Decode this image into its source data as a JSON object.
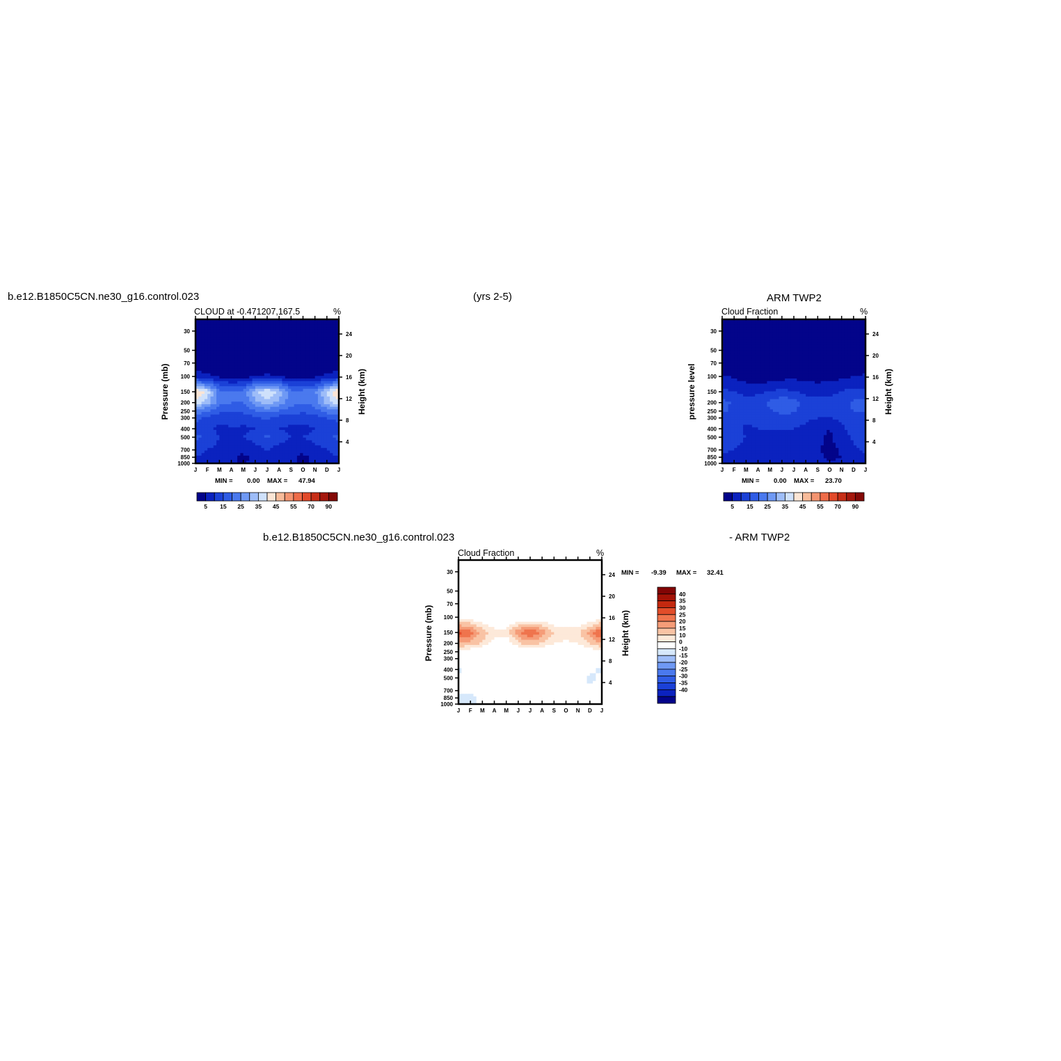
{
  "header": {
    "case_title": "b.e12.B1850C5CN.ne30_g16.control.023",
    "period": "(yrs 2-5)",
    "obs_title": "ARM TWP2",
    "diff_case": "b.e12.B1850C5CN.ne30_g16.control.023",
    "diff_obs": "- ARM TWP2"
  },
  "colors": {
    "seq_scale": [
      "#03048a",
      "#0b22bf",
      "#1b41d7",
      "#2f5ce5",
      "#4a79ee",
      "#6f99f4",
      "#9ebdf8",
      "#cfe1fb",
      "#fbe5d5",
      "#f7bb9a",
      "#f39470",
      "#ee6c49",
      "#e24a2a",
      "#c72e17",
      "#a5180d",
      "#840a07"
    ],
    "diff_scale": [
      "#03048a",
      "#0b22bf",
      "#1b41d7",
      "#2f5ce5",
      "#4a79ee",
      "#6f99f4",
      "#9ebdf8",
      "#d6e8fb",
      "#ffffff",
      "#fde9d9",
      "#f9c3a4",
      "#f59c78",
      "#ef744d",
      "#e24d2a",
      "#c4290f",
      "#a31206",
      "#820505"
    ]
  },
  "chart_data": [
    {
      "type": "heatmap",
      "panel_title": "CLOUD at -0.471207,167.5",
      "units": "%",
      "ylabel": "Pressure (mb)",
      "y2label": "Height (km)",
      "xticks": [
        "J",
        "F",
        "M",
        "A",
        "M",
        "J",
        "J",
        "A",
        "S",
        "O",
        "N",
        "D",
        "J"
      ],
      "yticks": [
        "30",
        "50",
        "70",
        "100",
        "150",
        "200",
        "250",
        "300",
        "400",
        "500",
        "700",
        "850",
        "1000"
      ],
      "y2ticks": [
        "24",
        "20",
        "16",
        "12",
        "8",
        "4"
      ],
      "stats_min_label": "MIN =",
      "stats_min": "0.00",
      "stats_max_label": "MAX =",
      "stats_max": "47.94",
      "min": 0.0,
      "max": 47.94,
      "levels": [
        5,
        10,
        15,
        20,
        25,
        30,
        35,
        40,
        45,
        50,
        55,
        60,
        70,
        80,
        90
      ],
      "colorbar_labels": [
        "5",
        "15",
        "25",
        "35",
        "45",
        "55",
        "70",
        "90"
      ],
      "months": [
        0,
        1,
        2,
        3,
        4,
        5,
        6,
        7,
        8,
        9,
        10,
        11,
        12
      ],
      "pressure": [
        30,
        50,
        70,
        100,
        150,
        200,
        250,
        300,
        400,
        500,
        700,
        850,
        1000
      ],
      "values": [
        [
          0,
          0,
          0,
          0,
          0,
          0,
          0,
          0,
          0,
          0,
          0,
          0,
          0
        ],
        [
          0,
          0,
          0,
          0,
          0,
          0,
          0,
          0,
          0,
          0,
          0,
          0,
          0
        ],
        [
          1,
          1,
          1,
          1,
          1,
          1,
          1,
          1,
          1,
          1,
          1,
          1,
          1
        ],
        [
          8,
          6,
          4,
          3,
          3,
          5,
          6,
          5,
          3,
          3,
          4,
          6,
          8
        ],
        [
          46,
          38,
          22,
          20,
          22,
          34,
          40,
          34,
          22,
          22,
          24,
          36,
          46
        ],
        [
          38,
          32,
          22,
          20,
          20,
          28,
          34,
          28,
          22,
          20,
          22,
          32,
          38
        ],
        [
          24,
          20,
          16,
          16,
          16,
          20,
          22,
          20,
          17,
          16,
          18,
          22,
          24
        ],
        [
          16,
          14,
          12,
          12,
          12,
          14,
          16,
          13,
          12,
          12,
          13,
          15,
          16
        ],
        [
          14,
          12,
          8,
          10,
          9,
          10,
          12,
          10,
          9,
          8,
          10,
          12,
          14
        ],
        [
          16,
          14,
          10,
          10,
          10,
          12,
          16,
          12,
          10,
          10,
          12,
          14,
          16
        ],
        [
          12,
          10,
          8,
          7,
          6,
          8,
          10,
          8,
          7,
          6,
          8,
          10,
          12
        ],
        [
          10,
          9,
          7,
          6,
          4,
          6,
          8,
          7,
          6,
          4,
          6,
          8,
          10
        ],
        [
          7,
          7,
          6,
          5,
          5,
          6,
          6,
          6,
          5,
          5,
          5,
          6,
          7
        ]
      ]
    },
    {
      "type": "heatmap",
      "panel_title": "Cloud Fraction",
      "units": "%",
      "ylabel": "pressure level",
      "y2label": "Height (km)",
      "xticks": [
        "J",
        "F",
        "M",
        "A",
        "M",
        "J",
        "J",
        "A",
        "S",
        "O",
        "N",
        "D",
        "J"
      ],
      "yticks": [
        "30",
        "50",
        "70",
        "100",
        "150",
        "200",
        "250",
        "300",
        "400",
        "500",
        "700",
        "850",
        "1000"
      ],
      "y2ticks": [
        "24",
        "20",
        "16",
        "12",
        "8",
        "4"
      ],
      "stats_min_label": "MIN =",
      "stats_min": "0.00",
      "stats_max_label": "MAX =",
      "stats_max": "23.70",
      "min": 0.0,
      "max": 23.7,
      "levels": [
        5,
        10,
        15,
        20,
        25,
        30,
        35,
        40,
        45,
        50,
        55,
        60,
        70,
        80,
        90
      ],
      "colorbar_labels": [
        "5",
        "15",
        "25",
        "35",
        "45",
        "55",
        "70",
        "90"
      ],
      "months": [
        0,
        1,
        2,
        3,
        4,
        5,
        6,
        7,
        8,
        9,
        10,
        11,
        12
      ],
      "pressure": [
        30,
        50,
        70,
        100,
        150,
        200,
        250,
        300,
        400,
        500,
        700,
        850,
        1000
      ],
      "values": [
        [
          0,
          0,
          0,
          0,
          0,
          0,
          0,
          0,
          0,
          0,
          0,
          0,
          0
        ],
        [
          0,
          0,
          0,
          0,
          0,
          0,
          0,
          0,
          0,
          0,
          0,
          0,
          0
        ],
        [
          0,
          0,
          0,
          0,
          0,
          0,
          0,
          0,
          0,
          0,
          0,
          0,
          0
        ],
        [
          6,
          4,
          3,
          2,
          2,
          3,
          4,
          3,
          3,
          3,
          4,
          5,
          6
        ],
        [
          11,
          10,
          8,
          9,
          10,
          12,
          10,
          9,
          8,
          9,
          10,
          12,
          11
        ],
        [
          17,
          14,
          12,
          13,
          16,
          19,
          17,
          12,
          12,
          11,
          13,
          16,
          17
        ],
        [
          16,
          14,
          13,
          13,
          14,
          17,
          16,
          13,
          12,
          12,
          14,
          15,
          16
        ],
        [
          13,
          12,
          11,
          12,
          12,
          13,
          12,
          11,
          10,
          10,
          11,
          12,
          13
        ],
        [
          14,
          12,
          9,
          10,
          10,
          10,
          10,
          9,
          7,
          5,
          9,
          12,
          14
        ],
        [
          13,
          12,
          10,
          9,
          9,
          8,
          9,
          9,
          6,
          4,
          8,
          11,
          13
        ],
        [
          11,
          10,
          8,
          7,
          6,
          7,
          6,
          7,
          6,
          3,
          6,
          9,
          11
        ],
        [
          9,
          8,
          7,
          6,
          5,
          6,
          5,
          6,
          6,
          4,
          5,
          7,
          9
        ],
        [
          7,
          7,
          6,
          6,
          6,
          6,
          6,
          6,
          6,
          6,
          6,
          6,
          7
        ]
      ]
    },
    {
      "type": "heatmap",
      "panel_title": "Cloud Fraction",
      "units": "%",
      "ylabel": "Pressure (mb)",
      "y2label": "Height (km)",
      "xticks": [
        "J",
        "F",
        "M",
        "A",
        "M",
        "J",
        "J",
        "A",
        "S",
        "O",
        "N",
        "D",
        "J"
      ],
      "yticks": [
        "30",
        "50",
        "70",
        "100",
        "150",
        "200",
        "250",
        "300",
        "400",
        "500",
        "700",
        "850",
        "1000"
      ],
      "y2ticks": [
        "24",
        "20",
        "16",
        "12",
        "8",
        "4"
      ],
      "stats_min_label": "MIN =",
      "stats_min": "-9.39",
      "stats_max_label": "MAX =",
      "stats_max": "32.41",
      "min": -9.39,
      "max": 32.41,
      "levels": [
        -40,
        -35,
        -30,
        -25,
        -20,
        -15,
        -10,
        0,
        10,
        15,
        20,
        25,
        30,
        35,
        40
      ],
      "colorbar_labels": [
        "40",
        "35",
        "30",
        "25",
        "20",
        "15",
        "10",
        "0",
        "-10",
        "-15",
        "-20",
        "-25",
        "-30",
        "-35",
        "-40"
      ],
      "months": [
        0,
        1,
        2,
        3,
        4,
        5,
        6,
        7,
        8,
        9,
        10,
        11,
        12
      ],
      "pressure": [
        30,
        50,
        70,
        100,
        150,
        200,
        250,
        300,
        400,
        500,
        700,
        850,
        1000
      ],
      "values": [
        [
          0,
          0,
          0,
          0,
          0,
          0,
          0,
          0,
          0,
          0,
          0,
          0,
          0
        ],
        [
          1,
          1,
          0,
          0,
          0,
          0,
          1,
          0,
          1,
          0,
          0,
          1,
          1
        ],
        [
          3,
          2,
          2,
          2,
          2,
          2,
          3,
          3,
          2,
          2,
          2,
          2,
          3
        ],
        [
          6,
          7,
          4,
          3,
          3,
          4,
          4,
          4,
          3,
          3,
          3,
          4,
          6
        ],
        [
          32,
          28,
          18,
          12,
          12,
          24,
          30,
          24,
          15,
          13,
          14,
          22,
          32
        ],
        [
          20,
          18,
          14,
          8,
          6,
          14,
          18,
          14,
          10,
          9,
          10,
          16,
          20
        ],
        [
          8,
          6,
          3,
          3,
          3,
          4,
          6,
          5,
          3,
          3,
          3,
          6,
          8
        ],
        [
          3,
          2,
          1,
          1,
          1,
          1,
          3,
          2,
          1,
          1,
          2,
          3,
          3
        ],
        [
          -1,
          2,
          2,
          1,
          1,
          2,
          4,
          3,
          2,
          2,
          1,
          1,
          -1
        ],
        [
          1,
          3,
          2,
          1,
          1,
          3,
          6,
          4,
          3,
          3,
          2,
          -1,
          1
        ],
        [
          0,
          1,
          1,
          1,
          2,
          2,
          3,
          4,
          2,
          2,
          2,
          1,
          0
        ],
        [
          0,
          -1,
          1,
          1,
          2,
          2,
          2,
          3,
          2,
          0,
          2,
          2,
          0
        ],
        [
          0,
          0,
          0,
          0,
          0,
          0,
          0,
          0,
          0,
          0,
          0,
          0,
          0
        ]
      ]
    }
  ]
}
